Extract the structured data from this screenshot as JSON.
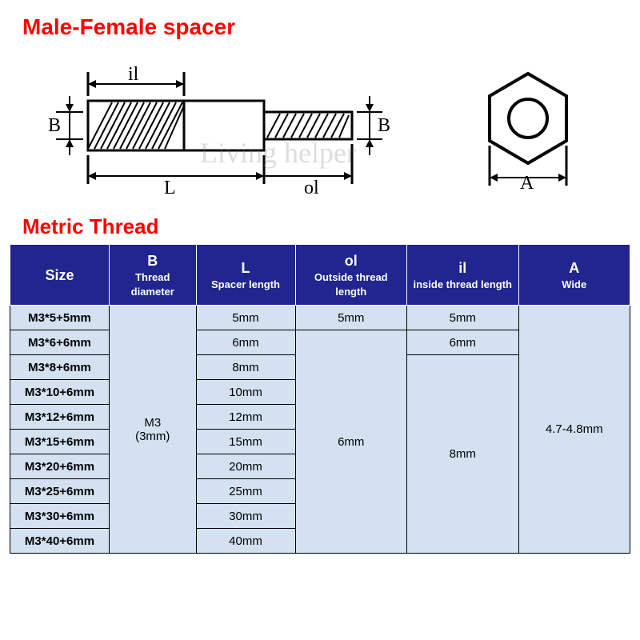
{
  "title": "Male-Female spacer",
  "subtitle": "Metric Thread",
  "watermark": "Living helper",
  "diagram": {
    "label_il": "il",
    "label_B_left": "B",
    "label_B_right": "B",
    "label_L": "L",
    "label_ol": "ol",
    "label_A": "A",
    "stroke": "#000000",
    "body_fill": "#ffffff"
  },
  "table": {
    "header_bg": "#20258f",
    "header_fg": "#ffffff",
    "cell_bg": "#d3e1f0",
    "border": "#000000",
    "col_widths_pct": [
      16,
      14,
      16,
      18,
      18,
      18
    ],
    "columns": [
      {
        "main": "Size",
        "sub": ""
      },
      {
        "main": "B",
        "sub": "Thread diameter"
      },
      {
        "main": "L",
        "sub": "Spacer length"
      },
      {
        "main": "ol",
        "sub": "Outside thread length"
      },
      {
        "main": "il",
        "sub": "inside thread length"
      },
      {
        "main": "A",
        "sub": "Wide"
      }
    ],
    "sizes": [
      "M3*5+5mm",
      "M3*6+6mm",
      "M3*8+6mm",
      "M3*10+6mm",
      "M3*12+6mm",
      "M3*15+6mm",
      "M3*20+6mm",
      "M3*25+6mm",
      "M3*30+6mm",
      "M3*40+6mm"
    ],
    "B": {
      "value": "M3\n(3mm)",
      "rowspan": 10
    },
    "L": [
      "5mm",
      "6mm",
      "8mm",
      "10mm",
      "12mm",
      "15mm",
      "20mm",
      "25mm",
      "30mm",
      "40mm"
    ],
    "ol": [
      {
        "value": "5mm",
        "rowspan": 1
      },
      {
        "value": "6mm",
        "rowspan": 9
      }
    ],
    "il": [
      {
        "value": "5mm",
        "rowspan": 1
      },
      {
        "value": "6mm",
        "rowspan": 1
      },
      {
        "value": "8mm",
        "rowspan": 8
      }
    ],
    "A": {
      "value": "4.7-4.8mm",
      "rowspan": 10
    }
  }
}
